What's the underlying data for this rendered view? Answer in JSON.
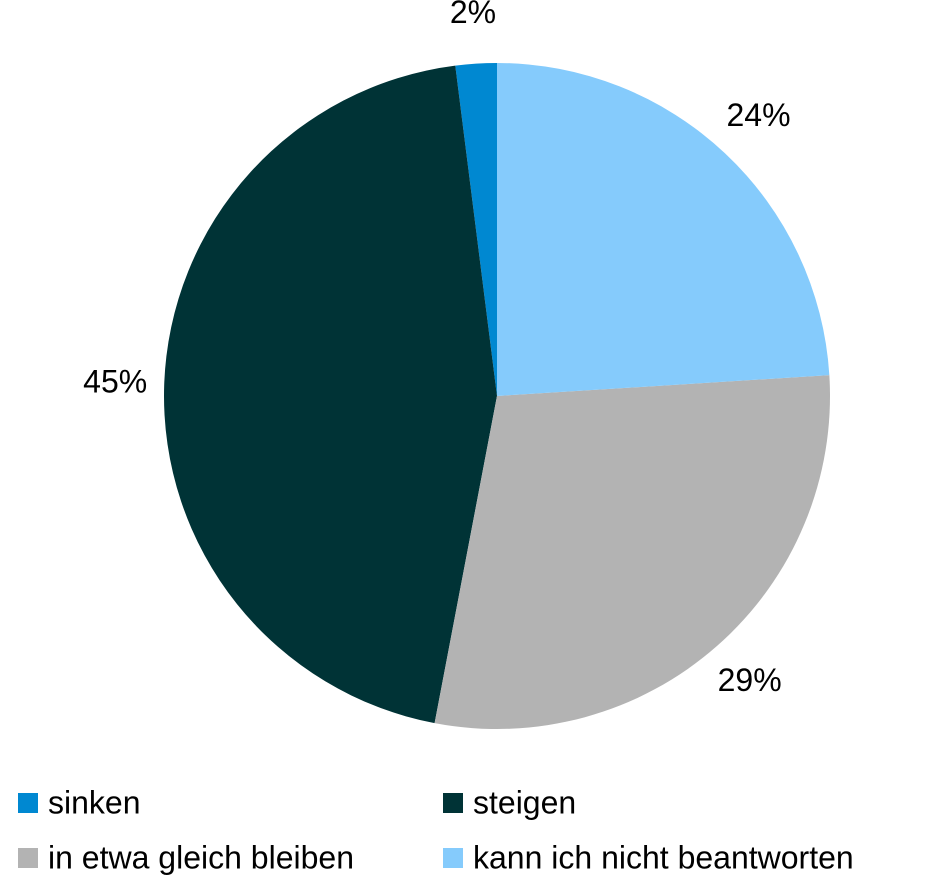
{
  "chart_data": {
    "type": "pie",
    "categories": [
      "sinken",
      "steigen",
      "in etwa gleich bleiben",
      "kann ich nicht beantworten"
    ],
    "values": [
      2,
      45,
      29,
      24
    ],
    "value_labels": [
      "2%",
      "45%",
      "29%",
      "24%"
    ],
    "colors": [
      "#0088d1",
      "#003336",
      "#b3b3b3",
      "#85cbfc"
    ]
  }
}
